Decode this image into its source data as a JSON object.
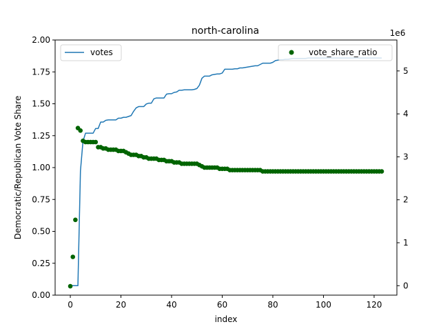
{
  "chart_data": {
    "type": "line",
    "title": "north-carolina",
    "xlabel": "index",
    "ylabel": "Democratic/Republican Vote Share",
    "ylabel_right": "",
    "right_axis_offset": "1e6",
    "xlim": [
      -6,
      129
    ],
    "ylim": [
      0,
      2
    ],
    "ylim_right": [
      -0.22,
      5.72
    ],
    "x_ticks": [
      0,
      20,
      40,
      60,
      80,
      100,
      120
    ],
    "y_ticks": [
      0.0,
      0.25,
      0.5,
      0.75,
      1.0,
      1.25,
      1.5,
      1.75,
      2.0
    ],
    "y_tick_labels": [
      "0.00",
      "0.25",
      "0.50",
      "0.75",
      "1.00",
      "1.25",
      "1.50",
      "1.75",
      "2.00"
    ],
    "y_right_ticks": [
      0,
      1,
      2,
      3,
      4,
      5
    ],
    "legend_left_placement": "upper left",
    "legend_right_placement": "upper right",
    "series": [
      {
        "name": "votes",
        "axis": "right",
        "color": "#1f77b4",
        "style": "line",
        "x": [
          0,
          1,
          2,
          3,
          4,
          5,
          6,
          7,
          8,
          9,
          10,
          11,
          12,
          13,
          14,
          15,
          16,
          17,
          18,
          19,
          20,
          21,
          22,
          23,
          24,
          25,
          26,
          27,
          28,
          29,
          30,
          31,
          32,
          33,
          34,
          35,
          36,
          37,
          38,
          39,
          40,
          41,
          42,
          43,
          44,
          45,
          46,
          47,
          48,
          49,
          50,
          51,
          52,
          53,
          54,
          55,
          56,
          57,
          58,
          59,
          60,
          61,
          62,
          63,
          64,
          65,
          66,
          67,
          68,
          69,
          70,
          71,
          72,
          73,
          74,
          75,
          76,
          77,
          78,
          79,
          80,
          81,
          82,
          83,
          84,
          85,
          86,
          87,
          88,
          89,
          90,
          91,
          92,
          93,
          94,
          95,
          96,
          97,
          98,
          99,
          100,
          101,
          102,
          103,
          104,
          105,
          106,
          107,
          108,
          109,
          110,
          111,
          112,
          113,
          114,
          115,
          116,
          117,
          118,
          119,
          120,
          121,
          122,
          123
        ],
        "values": [
          0.0,
          0.0,
          0.0,
          0.0,
          2.67,
          3.36,
          3.55,
          3.55,
          3.55,
          3.55,
          3.66,
          3.66,
          3.81,
          3.81,
          3.85,
          3.86,
          3.86,
          3.86,
          3.86,
          3.9,
          3.9,
          3.92,
          3.92,
          3.94,
          3.96,
          4.06,
          4.14,
          4.17,
          4.17,
          4.17,
          4.23,
          4.25,
          4.25,
          4.35,
          4.37,
          4.37,
          4.37,
          4.37,
          4.46,
          4.47,
          4.47,
          4.5,
          4.51,
          4.55,
          4.55,
          4.56,
          4.56,
          4.56,
          4.56,
          4.57,
          4.59,
          4.67,
          4.83,
          4.88,
          4.88,
          4.88,
          4.91,
          4.92,
          4.93,
          4.93,
          4.95,
          5.04,
          5.04,
          5.04,
          5.04,
          5.05,
          5.05,
          5.07,
          5.07,
          5.08,
          5.09,
          5.1,
          5.11,
          5.12,
          5.12,
          5.15,
          5.18,
          5.18,
          5.18,
          5.18,
          5.2,
          5.24,
          5.25,
          5.26,
          5.26,
          5.27,
          5.27,
          5.28,
          5.29,
          5.29,
          5.29,
          5.29,
          5.29,
          5.29,
          5.3,
          5.3,
          5.3,
          5.3,
          5.3,
          5.3,
          5.3,
          5.3,
          5.3,
          5.3,
          5.3,
          5.3,
          5.3,
          5.3,
          5.3,
          5.3,
          5.3,
          5.3,
          5.3,
          5.3,
          5.3,
          5.3,
          5.3,
          5.3,
          5.3,
          5.3,
          5.3,
          5.3,
          5.3,
          5.3
        ]
      },
      {
        "name": "vote_share_ratio",
        "axis": "left",
        "color": "#006400",
        "style": "scatter",
        "x": [
          0,
          1,
          2,
          3,
          4,
          5,
          6,
          7,
          8,
          9,
          10,
          11,
          12,
          13,
          14,
          15,
          16,
          17,
          18,
          19,
          20,
          21,
          22,
          23,
          24,
          25,
          26,
          27,
          28,
          29,
          30,
          31,
          32,
          33,
          34,
          35,
          36,
          37,
          38,
          39,
          40,
          41,
          42,
          43,
          44,
          45,
          46,
          47,
          48,
          49,
          50,
          51,
          52,
          53,
          54,
          55,
          56,
          57,
          58,
          59,
          60,
          61,
          62,
          63,
          64,
          65,
          66,
          67,
          68,
          69,
          70,
          71,
          72,
          73,
          74,
          75,
          76,
          77,
          78,
          79,
          80,
          81,
          82,
          83,
          84,
          85,
          86,
          87,
          88,
          89,
          90,
          91,
          92,
          93,
          94,
          95,
          96,
          97,
          98,
          99,
          100,
          101,
          102,
          103,
          104,
          105,
          106,
          107,
          108,
          109,
          110,
          111,
          112,
          113,
          114,
          115,
          116,
          117,
          118,
          119,
          120,
          121,
          122,
          123
        ],
        "values": [
          0.07,
          0.3,
          0.59,
          1.31,
          1.29,
          1.21,
          1.2,
          1.2,
          1.2,
          1.2,
          1.2,
          1.16,
          1.16,
          1.15,
          1.15,
          1.14,
          1.14,
          1.14,
          1.14,
          1.13,
          1.13,
          1.13,
          1.12,
          1.11,
          1.1,
          1.1,
          1.1,
          1.09,
          1.09,
          1.08,
          1.08,
          1.07,
          1.07,
          1.07,
          1.07,
          1.06,
          1.06,
          1.06,
          1.05,
          1.05,
          1.05,
          1.04,
          1.04,
          1.04,
          1.03,
          1.03,
          1.03,
          1.03,
          1.03,
          1.03,
          1.03,
          1.02,
          1.01,
          1.0,
          1.0,
          1.0,
          1.0,
          1.0,
          1.0,
          0.99,
          0.99,
          0.99,
          0.99,
          0.98,
          0.98,
          0.98,
          0.98,
          0.98,
          0.98,
          0.98,
          0.98,
          0.98,
          0.98,
          0.98,
          0.98,
          0.98,
          0.97,
          0.97,
          0.97,
          0.97,
          0.97,
          0.97,
          0.97,
          0.97,
          0.97,
          0.97,
          0.97,
          0.97,
          0.97,
          0.97,
          0.97,
          0.97,
          0.97,
          0.97,
          0.97,
          0.97,
          0.97,
          0.97,
          0.97,
          0.97,
          0.97,
          0.97,
          0.97,
          0.97,
          0.97,
          0.97,
          0.97,
          0.97,
          0.97,
          0.97,
          0.97,
          0.97,
          0.97,
          0.97,
          0.97,
          0.97,
          0.97,
          0.97,
          0.97,
          0.97,
          0.97,
          0.97,
          0.97,
          0.97
        ]
      }
    ]
  }
}
